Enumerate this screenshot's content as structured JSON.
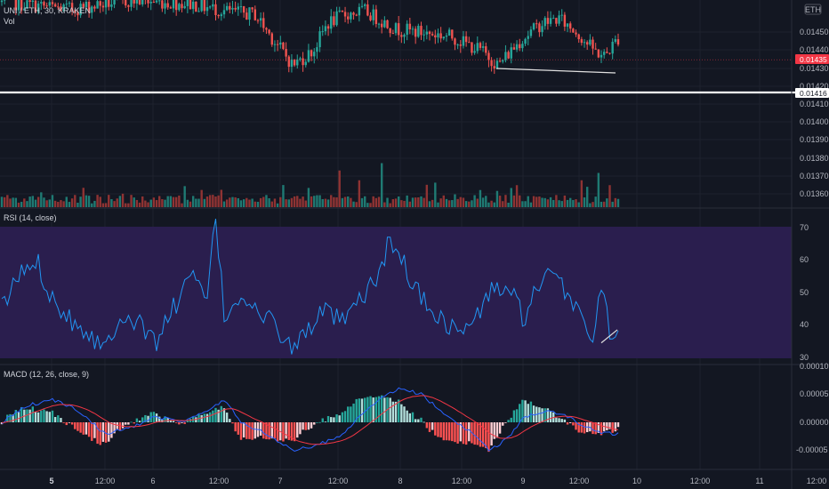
{
  "colors": {
    "background": "#131722",
    "grid": "#1e222d",
    "axis_text": "#b2b5be",
    "up": "#26a69a",
    "down": "#ef5350",
    "vol_up": "#1f7a73",
    "vol_down": "#8f3333",
    "rsi_line": "#2196f3",
    "rsi_band": "#2a1e4e",
    "macd_line": "#2962ff",
    "signal_line": "#f23645",
    "hist_up": "#26a69a",
    "hist_up_light": "#b2dfdb",
    "hist_down": "#ff5252",
    "hist_down_light": "#ffcdd2",
    "last_price_tag": "#f23645",
    "horizontal_line": "#ffffff",
    "trend_line": "#e0e0e0"
  },
  "header": {
    "symbol_legend": "UNI / ETH, 30, KRAKEN",
    "vol_legend": "Vol",
    "currency_label": "ETH"
  },
  "price_axis": {
    "ticks": [
      "0.01450",
      "0.01440",
      "0.01430",
      "0.01420",
      "0.01410",
      "0.01400",
      "0.01390",
      "0.01380",
      "0.01370",
      "0.01360"
    ],
    "last_price": "0.01435",
    "hline_price": "0.01416"
  },
  "rsi_panel": {
    "legend": "RSI (14, close)",
    "ticks": [
      "70",
      "60",
      "50",
      "40",
      "30"
    ],
    "upper_band": 70,
    "lower_band": 30
  },
  "macd_panel": {
    "legend": "MACD (12, 26, close, 9)",
    "ticks": [
      "0.00010",
      "0.00005",
      "0.00000",
      "-0.00005"
    ]
  },
  "time_axis": {
    "ticks": [
      "5",
      "12:00",
      "6",
      "12:00",
      "7",
      "12:00",
      "8",
      "12:00",
      "9",
      "12:00",
      "10",
      "12:00",
      "11",
      "12:00"
    ]
  },
  "chart_data": [
    {
      "type": "candlestick",
      "pane": "price",
      "symbol": "UNI / ETH",
      "interval": "30",
      "exchange": "KRAKEN",
      "ylim": [
        0.01356,
        0.0146
      ],
      "last_price": 0.01435,
      "horizontal_line": 0.01416,
      "trendline": {
        "from": [
          "8 21:00",
          0.01428
        ],
        "to": [
          "9 17:30",
          0.01427
        ]
      },
      "volume_shown": true
    },
    {
      "type": "line",
      "pane": "rsi",
      "name": "RSI (14, close)",
      "ylim": [
        28,
        75
      ],
      "bands": [
        70,
        30
      ],
      "trendline": {
        "from": [
          "9 16:00",
          34.5
        ],
        "to": [
          "9 18:00",
          38.5
        ]
      }
    },
    {
      "type": "line",
      "pane": "macd",
      "name": "MACD (12, 26, close, 9)",
      "ylim": [
        -0.0001,
        0.0001
      ],
      "series": [
        "MACD",
        "Signal",
        "Histogram"
      ]
    }
  ]
}
